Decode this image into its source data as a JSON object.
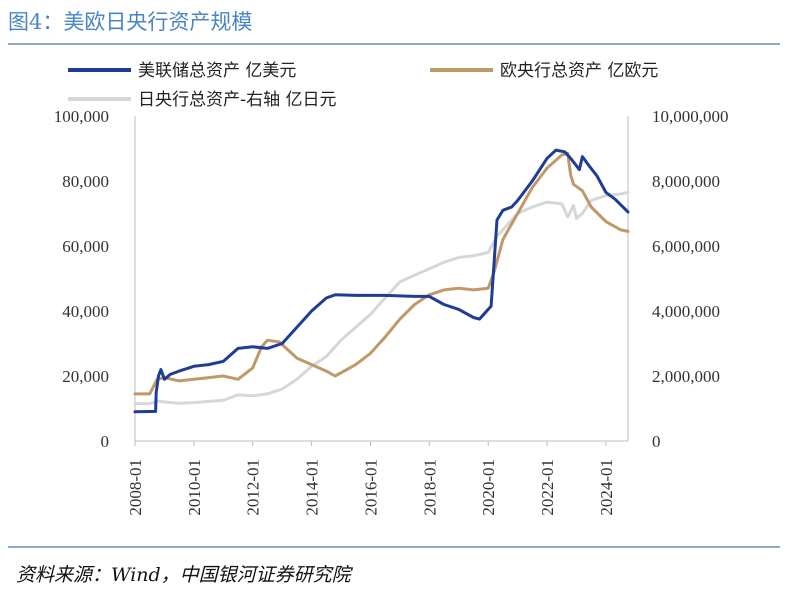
{
  "title": "图4：美欧日央行资产规模",
  "source": "资料来源：Wind，中国银河证券研究院",
  "chart_data": {
    "type": "line",
    "colors": {
      "fed": "#1f3d96",
      "ecb": "#bf9a68",
      "boj": "#d7d7d7"
    },
    "legend": [
      "美联储总资产 亿美元",
      "欧央行总资产 亿欧元",
      "日央行总资产-右轴 亿日元"
    ],
    "y_left": {
      "range": [
        0,
        100000
      ],
      "ticks": [
        "0",
        "20,000",
        "40,000",
        "60,000",
        "80,000",
        "100,000"
      ]
    },
    "y_right": {
      "range": [
        0,
        10000000
      ],
      "ticks": [
        "0",
        "2,000,000",
        "4,000,000",
        "6,000,000",
        "8,000,000",
        "10,000,000"
      ]
    },
    "x_range": [
      2008.0,
      2024.75
    ],
    "x_ticks": [
      "2008-01",
      "2010-01",
      "2012-01",
      "2014-01",
      "2016-01",
      "2018-01",
      "2020-01",
      "2022-01",
      "2024-01"
    ],
    "series": [
      {
        "name": "美联储总资产 亿美元",
        "axis": "left",
        "points": [
          [
            2008.0,
            9000
          ],
          [
            2008.7,
            9100
          ],
          [
            2008.72,
            15000
          ],
          [
            2008.8,
            20000
          ],
          [
            2008.88,
            22000
          ],
          [
            2009.0,
            19000
          ],
          [
            2009.2,
            20500
          ],
          [
            2009.5,
            21500
          ],
          [
            2010.0,
            23000
          ],
          [
            2010.5,
            23500
          ],
          [
            2011.0,
            24500
          ],
          [
            2011.5,
            28500
          ],
          [
            2012.0,
            29000
          ],
          [
            2012.5,
            28500
          ],
          [
            2013.0,
            30000
          ],
          [
            2013.5,
            35000
          ],
          [
            2014.0,
            40000
          ],
          [
            2014.5,
            44000
          ],
          [
            2014.8,
            45000
          ],
          [
            2015.5,
            44800
          ],
          [
            2016.5,
            44800
          ],
          [
            2017.5,
            44500
          ],
          [
            2018.0,
            44500
          ],
          [
            2018.5,
            42000
          ],
          [
            2019.0,
            40500
          ],
          [
            2019.5,
            38000
          ],
          [
            2019.7,
            37500
          ],
          [
            2019.85,
            39000
          ],
          [
            2020.1,
            41500
          ],
          [
            2020.2,
            55000
          ],
          [
            2020.3,
            68000
          ],
          [
            2020.5,
            71000
          ],
          [
            2020.8,
            72000
          ],
          [
            2021.0,
            74000
          ],
          [
            2021.5,
            80000
          ],
          [
            2022.0,
            87000
          ],
          [
            2022.3,
            89500
          ],
          [
            2022.6,
            89000
          ],
          [
            2022.8,
            87000
          ],
          [
            2023.1,
            83500
          ],
          [
            2023.2,
            87500
          ],
          [
            2023.4,
            85000
          ],
          [
            2023.7,
            81500
          ],
          [
            2024.0,
            76500
          ],
          [
            2024.3,
            74500
          ],
          [
            2024.75,
            70500
          ]
        ]
      },
      {
        "name": "欧央行总资产 亿欧元",
        "axis": "left",
        "points": [
          [
            2008.0,
            14500
          ],
          [
            2008.5,
            14500
          ],
          [
            2008.75,
            19000
          ],
          [
            2009.0,
            19500
          ],
          [
            2009.5,
            18500
          ],
          [
            2010.0,
            19000
          ],
          [
            2010.5,
            19500
          ],
          [
            2011.0,
            20000
          ],
          [
            2011.5,
            19000
          ],
          [
            2012.0,
            22500
          ],
          [
            2012.3,
            29000
          ],
          [
            2012.5,
            31000
          ],
          [
            2012.9,
            30500
          ],
          [
            2013.5,
            25500
          ],
          [
            2014.0,
            23500
          ],
          [
            2014.5,
            21500
          ],
          [
            2014.8,
            20000
          ],
          [
            2015.0,
            21000
          ],
          [
            2015.5,
            23500
          ],
          [
            2016.0,
            27000
          ],
          [
            2016.5,
            32000
          ],
          [
            2017.0,
            37500
          ],
          [
            2017.5,
            42000
          ],
          [
            2018.0,
            45000
          ],
          [
            2018.5,
            46500
          ],
          [
            2019.0,
            47000
          ],
          [
            2019.5,
            46500
          ],
          [
            2020.0,
            47000
          ],
          [
            2020.2,
            52000
          ],
          [
            2020.5,
            62000
          ],
          [
            2021.0,
            70000
          ],
          [
            2021.5,
            78000
          ],
          [
            2022.0,
            84000
          ],
          [
            2022.5,
            88000
          ],
          [
            2022.7,
            88500
          ],
          [
            2022.8,
            82000
          ],
          [
            2022.9,
            79000
          ],
          [
            2023.2,
            77000
          ],
          [
            2023.5,
            72000
          ],
          [
            2024.0,
            67500
          ],
          [
            2024.5,
            65000
          ],
          [
            2024.75,
            64500
          ]
        ]
      },
      {
        "name": "日央行总资产-右轴 亿日元",
        "axis": "right",
        "points": [
          [
            2008.0,
            1150000
          ],
          [
            2008.5,
            1150000
          ],
          [
            2008.8,
            1230000
          ],
          [
            2009.0,
            1200000
          ],
          [
            2009.5,
            1160000
          ],
          [
            2010.0,
            1180000
          ],
          [
            2010.5,
            1220000
          ],
          [
            2011.0,
            1250000
          ],
          [
            2011.5,
            1420000
          ],
          [
            2012.0,
            1390000
          ],
          [
            2012.5,
            1450000
          ],
          [
            2013.0,
            1600000
          ],
          [
            2013.5,
            1900000
          ],
          [
            2014.0,
            2300000
          ],
          [
            2014.5,
            2600000
          ],
          [
            2015.0,
            3100000
          ],
          [
            2015.5,
            3500000
          ],
          [
            2016.0,
            3900000
          ],
          [
            2016.5,
            4400000
          ],
          [
            2017.0,
            4900000
          ],
          [
            2017.5,
            5100000
          ],
          [
            2018.0,
            5300000
          ],
          [
            2018.5,
            5500000
          ],
          [
            2019.0,
            5650000
          ],
          [
            2019.5,
            5700000
          ],
          [
            2020.0,
            5800000
          ],
          [
            2020.3,
            6300000
          ],
          [
            2020.8,
            6800000
          ],
          [
            2021.0,
            7000000
          ],
          [
            2021.5,
            7200000
          ],
          [
            2022.0,
            7350000
          ],
          [
            2022.5,
            7300000
          ],
          [
            2022.7,
            6900000
          ],
          [
            2022.9,
            7250000
          ],
          [
            2023.0,
            6850000
          ],
          [
            2023.2,
            7000000
          ],
          [
            2023.5,
            7400000
          ],
          [
            2024.0,
            7550000
          ],
          [
            2024.5,
            7600000
          ],
          [
            2024.75,
            7650000
          ]
        ]
      }
    ]
  }
}
